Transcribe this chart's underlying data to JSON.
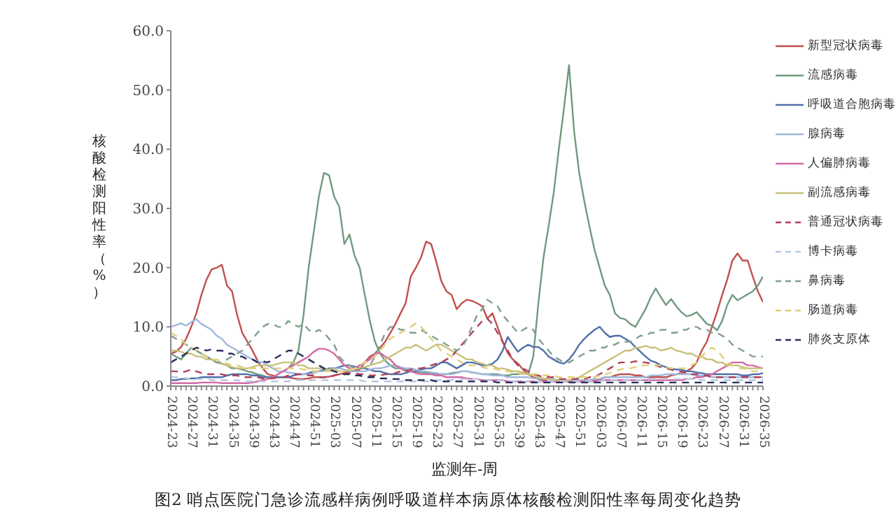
{
  "chart_data": {
    "type": "line",
    "title": "图2 哨点医院门急诊流感样病例呼吸道样本病原体核酸检测阳性率每周变化趋势",
    "xlabel": "监测年-周",
    "ylabel": "核酸检测阳性率（%）",
    "categories": [
      "2024-23",
      null,
      null,
      null,
      "2024-27",
      null,
      null,
      null,
      "2024-31",
      null,
      null,
      null,
      "2024-35",
      null,
      null,
      null,
      "2024-39",
      null,
      null,
      null,
      "2024-43",
      null,
      null,
      null,
      "2024-47",
      null,
      null,
      null,
      "2024-51",
      null,
      null,
      null,
      "2025-03",
      null,
      null,
      null,
      "2025-07",
      null,
      null,
      null,
      "2025-11",
      null,
      null,
      null,
      "2025-15",
      null,
      null,
      null,
      "2025-19",
      null,
      null,
      null,
      "2025-23",
      null,
      null,
      null,
      "2025-27",
      null,
      null,
      null,
      "2025-31",
      null,
      null,
      null,
      "2025-35",
      null,
      null,
      null,
      "2025-39",
      null,
      null,
      null,
      "2025-43",
      null,
      null,
      null,
      "2025-47",
      null,
      null,
      null,
      "2025-51",
      null,
      null,
      null,
      "2026-03",
      null,
      null,
      null,
      "2026-07",
      null,
      null,
      null,
      "2026-11",
      null,
      null,
      null,
      "2026-15",
      null,
      null,
      null,
      "2026-19",
      null,
      null,
      null,
      "2026-23",
      null,
      null,
      null,
      "2026-27",
      null,
      null,
      null,
      "2026-31",
      null,
      null,
      null,
      "2026-35"
    ],
    "ylim": [
      0,
      60
    ],
    "yticks": [
      {
        "value": 0,
        "label": "0.0"
      },
      {
        "value": 10,
        "label": "10.0"
      },
      {
        "value": 20,
        "label": "20.0"
      },
      {
        "value": 30,
        "label": "30.0"
      },
      {
        "value": 40,
        "label": "40.0"
      },
      {
        "value": 50,
        "label": "50.0"
      },
      {
        "value": 60,
        "label": "60.0"
      }
    ],
    "grid": false,
    "legend": "right",
    "marker": "none",
    "series": [
      {
        "name": "新型冠状病毒",
        "color": "#c0504d",
        "line_style": "solid",
        "values": [
          5.5,
          5.8,
          6.6,
          8,
          10,
          12.3,
          15.4,
          18,
          19.7,
          20,
          20.5,
          17,
          16,
          12,
          9,
          7.5,
          6,
          4.3,
          3,
          2,
          1.8,
          1.5,
          1.5,
          1.5,
          1.3,
          1.2,
          1.2,
          1.3,
          1.5,
          1.5,
          1.5,
          1.6,
          1.8,
          2,
          2.2,
          2.5,
          2.6,
          2.8,
          4,
          5,
          5.5,
          6.5,
          7.5,
          9,
          10.5,
          12.3,
          14,
          18.5,
          20,
          21.7,
          24.4,
          24,
          21,
          17.7,
          16,
          15.4,
          13,
          14,
          14.6,
          14.4,
          14,
          13.5,
          11.4,
          12.3,
          10,
          7.5,
          5.6,
          4.5,
          3.8,
          2.8,
          2,
          1.5,
          1.2,
          1,
          0.8,
          0.8,
          0.8,
          0.8,
          0.8,
          0.8,
          0.8,
          0.8,
          0.8,
          1,
          1.2,
          1.5,
          1.5,
          1.8,
          2,
          2,
          2,
          1.8,
          1.8,
          1.5,
          1.5,
          1.5,
          1.5,
          1.5,
          1.8,
          2,
          2.2,
          2.5,
          3,
          4,
          6,
          7.5,
          10,
          12.5,
          15.4,
          18,
          21.2,
          22.4,
          21.2,
          21.2,
          18.5,
          16,
          14.2
        ]
      },
      {
        "name": "流感病毒",
        "color": "#6f9a7e",
        "line_style": "solid",
        "values": [
          5.5,
          5,
          4.5,
          5.5,
          6.5,
          6,
          5.5,
          5,
          4.5,
          4,
          3.8,
          3.5,
          3,
          3,
          2.8,
          2.5,
          2.3,
          2,
          1.8,
          1.5,
          1.5,
          2,
          2.5,
          3,
          4,
          6,
          12,
          20,
          26,
          32,
          36,
          35.6,
          32,
          30.3,
          24,
          25.6,
          22,
          20,
          15.4,
          11,
          7.5,
          5.5,
          4.3,
          3.5,
          3,
          3,
          2.8,
          2.5,
          2.5,
          2.3,
          2.3,
          2.2,
          2,
          2,
          2,
          2.2,
          2.3,
          2.5,
          2.5,
          2.3,
          2.2,
          2,
          2,
          2,
          2,
          1.8,
          1.8,
          2,
          2,
          2.2,
          2,
          5,
          14,
          21.7,
          27,
          32.6,
          40,
          46.8,
          54.2,
          43,
          36,
          31.2,
          27,
          23,
          20,
          17,
          15.4,
          12.3,
          11.5,
          11.3,
          10.5,
          10,
          11.5,
          13,
          15,
          16.5,
          15,
          13.7,
          14.7,
          13.5,
          12.5,
          11.8,
          12,
          12.5,
          11.5,
          10.5,
          10.2,
          9.4,
          11,
          13.7,
          15.4,
          14.5,
          15,
          15.5,
          16,
          17,
          18.5
        ]
      },
      {
        "name": "呼吸道合胞病毒",
        "color": "#4f6fa8",
        "line_style": "solid",
        "values": [
          1,
          1,
          1.2,
          1.2,
          1.3,
          1.3,
          1.5,
          1.5,
          1.5,
          1.5,
          1.5,
          1.8,
          2,
          2,
          2,
          2,
          1.8,
          1.8,
          1.5,
          1.5,
          1.5,
          1.5,
          1.5,
          1.5,
          1.8,
          2,
          2,
          2.2,
          2.5,
          2.5,
          2.8,
          3,
          3,
          3.2,
          3.5,
          3.5,
          3.3,
          3,
          3,
          2.8,
          2.5,
          2.5,
          2.2,
          2,
          2,
          2,
          2.2,
          2.5,
          2.5,
          2.8,
          3,
          3,
          3.5,
          4,
          4,
          3.5,
          3,
          3.5,
          4,
          4,
          3.8,
          3.5,
          3.5,
          3.8,
          4.5,
          6,
          8.3,
          7,
          5.8,
          6.5,
          7,
          6.6,
          6.6,
          6,
          5,
          4.5,
          4,
          3.8,
          4.5,
          5.6,
          7,
          8,
          8.8,
          9.5,
          10,
          9,
          8.3,
          8.5,
          8.5,
          8,
          7.5,
          6.6,
          5.8,
          5,
          4.3,
          4,
          3.5,
          3.2,
          3,
          2.8,
          2.8,
          2.5,
          2.5,
          2.3,
          2.2,
          2,
          2,
          2,
          2,
          2,
          2,
          2,
          1.8,
          1.8,
          2,
          2,
          2.2
        ]
      },
      {
        "name": "腺病毒",
        "color": "#9fb6dc",
        "line_style": "solid",
        "values": [
          10,
          10.3,
          10.6,
          10.2,
          10.8,
          11.3,
          10.5,
          10,
          9.5,
          8.5,
          8,
          7,
          6.5,
          6,
          5.5,
          5,
          4.5,
          4.2,
          4,
          3.5,
          3,
          2.5,
          2.5,
          2.3,
          2.2,
          2,
          2,
          2,
          2.2,
          2.5,
          2.5,
          2.8,
          3,
          3,
          2.8,
          2.5,
          2.5,
          2.5,
          2.5,
          2.8,
          3,
          3,
          3.2,
          3.5,
          3.5,
          3.2,
          3,
          3,
          2.8,
          2.5,
          2.5,
          2.3,
          2.2,
          2,
          2,
          2,
          2.2,
          2.5,
          2.5,
          2.3,
          2.2,
          2,
          2,
          1.8,
          1.8,
          1.8,
          1.5,
          1.5,
          1.5,
          1.5,
          1.5,
          1.3,
          1.3,
          1.2,
          1.2,
          1.2,
          1,
          1,
          1,
          1,
          1,
          1,
          1,
          1.2,
          1.2,
          1.5,
          1.5,
          1.5,
          1.5,
          1.5,
          1.5,
          1.5,
          1.5,
          1.5,
          1.8,
          1.8,
          1.8,
          2,
          2,
          2,
          2,
          2,
          2,
          1.8,
          1.8,
          1.8,
          1.5,
          1.5,
          1.5,
          1.5,
          1.5,
          1.5,
          1.5,
          1.5,
          1.5,
          1.5,
          1.5
        ]
      },
      {
        "name": "人偏肺病毒",
        "color": "#d46ba5",
        "line_style": "solid",
        "values": [
          0.5,
          0.5,
          0.5,
          0.5,
          0.5,
          0.5,
          0.6,
          0.6,
          0.6,
          0.6,
          0.5,
          0.5,
          0.5,
          0.5,
          0.5,
          0.5,
          0.6,
          0.8,
          1,
          1.2,
          1.5,
          2,
          2.5,
          3,
          3.5,
          4,
          4.5,
          5,
          5.8,
          6.3,
          6.3,
          6,
          5.5,
          4.5,
          3.5,
          3,
          3,
          3.5,
          4,
          4.5,
          5.5,
          5.6,
          5,
          4.5,
          3.5,
          3,
          2.5,
          2.5,
          2.2,
          2,
          2,
          2,
          1.8,
          1.8,
          1.5,
          1.5,
          1.5,
          1.5,
          1.3,
          1.2,
          1.2,
          1,
          1,
          1,
          1,
          1,
          0.8,
          0.8,
          0.8,
          0.8,
          0.8,
          0.8,
          0.8,
          0.8,
          0.8,
          0.8,
          0.8,
          0.8,
          0.8,
          0.8,
          0.8,
          0.8,
          0.8,
          0.8,
          1,
          1,
          1,
          1,
          1,
          1,
          1,
          1,
          1,
          1,
          1,
          1,
          1,
          1,
          1,
          1,
          1,
          1.2,
          1.2,
          1.5,
          1.5,
          1.8,
          2,
          2.5,
          3,
          3.5,
          4,
          4,
          4,
          3.5,
          3.5,
          3.2,
          3
        ]
      },
      {
        "name": "副流感病毒",
        "color": "#c8c07a",
        "line_style": "solid",
        "values": [
          6,
          6,
          5.8,
          5.5,
          5.5,
          5,
          5,
          4.5,
          4.5,
          4,
          3.8,
          3.5,
          3.2,
          3,
          3,
          3,
          3.2,
          3.5,
          3.5,
          3.5,
          3.5,
          3.8,
          4,
          4,
          4,
          3.5,
          3.5,
          3,
          3,
          3,
          3,
          2.8,
          2.8,
          2.5,
          2.5,
          2.8,
          3,
          3,
          3.2,
          3.5,
          3.8,
          4,
          4.5,
          5,
          5.5,
          6,
          6.5,
          6.5,
          7,
          6.5,
          6,
          6.5,
          7,
          7,
          6.5,
          6,
          5.5,
          5,
          4.5,
          4.5,
          4,
          3.8,
          3.5,
          3.5,
          3,
          3,
          2.8,
          2.5,
          2.5,
          2.3,
          2,
          1.8,
          1.5,
          1.3,
          1.2,
          1,
          1,
          1,
          1,
          1.2,
          1.5,
          2,
          2.5,
          3,
          3.5,
          4,
          4.5,
          5,
          5.5,
          6,
          6,
          6.5,
          6.5,
          6.8,
          6.5,
          6.5,
          6,
          6.2,
          6.5,
          6,
          5.8,
          5.5,
          5.5,
          5,
          5,
          4.5,
          4.5,
          4,
          4,
          3.5,
          3.5,
          3.5,
          3.2,
          3,
          3,
          3,
          3
        ]
      },
      {
        "name": "普通冠状病毒",
        "color": "#b0405a",
        "line_style": "dashed",
        "values": [
          2.5,
          2.5,
          2.3,
          2.5,
          2.8,
          2.5,
          2.2,
          2,
          2,
          2,
          2,
          1.8,
          1.8,
          1.8,
          1.5,
          1.5,
          1.5,
          1.5,
          1.3,
          1.3,
          1.3,
          1.5,
          1.5,
          1.8,
          2,
          2,
          2,
          1.8,
          1.8,
          1.5,
          1.5,
          1.5,
          1.8,
          2,
          2,
          2.2,
          2.2,
          2,
          2,
          1.8,
          1.8,
          1.8,
          2,
          2,
          2.2,
          2.5,
          2.5,
          2.8,
          3,
          3,
          3.2,
          3.5,
          3.8,
          4,
          4.5,
          5,
          6,
          7,
          8,
          9,
          10,
          11,
          11.4,
          10.5,
          9,
          7.5,
          6,
          4.5,
          3.5,
          3,
          2.5,
          2,
          1.8,
          1.5,
          1.5,
          1.5,
          1.2,
          1.2,
          1.2,
          1.2,
          1.2,
          1.2,
          1.5,
          1.5,
          2,
          2.5,
          3,
          3.5,
          4,
          4,
          4,
          4.2,
          4,
          4,
          3.8,
          3.5,
          3.2,
          3,
          2.8,
          2.5,
          2.5,
          2.2,
          2,
          2,
          1.8,
          1.8,
          1.5,
          1.5,
          1.5,
          1.5,
          1.5,
          1.5,
          1.5,
          1.5,
          1.5,
          1.5,
          1.5
        ]
      },
      {
        "name": "博卡病毒",
        "color": "#b8c8e0",
        "line_style": "dashed",
        "values": [
          1.5,
          1.5,
          1.5,
          1.3,
          1.3,
          1.2,
          1.2,
          1.2,
          1,
          1,
          1,
          1,
          1,
          1,
          0.8,
          0.8,
          0.8,
          0.8,
          0.8,
          0.8,
          0.8,
          0.8,
          0.8,
          0.8,
          1,
          1,
          1,
          1,
          1,
          1,
          1,
          1,
          1,
          1,
          1,
          1,
          1,
          1,
          0.8,
          0.8,
          0.8,
          0.8,
          0.8,
          0.8,
          0.8,
          0.8,
          0.8,
          0.8,
          0.8,
          0.8,
          0.8,
          0.8,
          1,
          1,
          1,
          1,
          1.2,
          1.2,
          1.2,
          1.2,
          1.2,
          1.2,
          1,
          1,
          1,
          1,
          0.8,
          0.8,
          0.8,
          0.8,
          0.8,
          0.8,
          0.8,
          0.8,
          0.8,
          0.8,
          0.8,
          0.8,
          0.8,
          0.8,
          0.8,
          0.8,
          0.8,
          0.8,
          0.8,
          1,
          1,
          1,
          1,
          1,
          1,
          1,
          1,
          1,
          1.2,
          1.2,
          1.2,
          1.2,
          1.2,
          1.2,
          1.2,
          1.2,
          1.2,
          1.2,
          1,
          1,
          1,
          1,
          1,
          1,
          1,
          1,
          1,
          1,
          1,
          1,
          1
        ]
      },
      {
        "name": "鼻病毒",
        "color": "#7f9f8f",
        "line_style": "dashed",
        "values": [
          8.5,
          8,
          7.5,
          7,
          6.5,
          6,
          5.5,
          5,
          4.5,
          4,
          4,
          4.5,
          5,
          5.5,
          6,
          7,
          8,
          9,
          10,
          10.5,
          10.5,
          10,
          10,
          11,
          10.5,
          10,
          10.5,
          9.5,
          9,
          9.5,
          9,
          8,
          7,
          5,
          4,
          3.5,
          3,
          3,
          3,
          3.5,
          5,
          7,
          9,
          10,
          10,
          9.5,
          9.5,
          9,
          9,
          9.5,
          9,
          8.5,
          8,
          7.5,
          7,
          6.5,
          6,
          6.5,
          8,
          10,
          12,
          13,
          14.6,
          14,
          13.5,
          12,
          11,
          10,
          9,
          9.5,
          10,
          9.5,
          8,
          7,
          6,
          5,
          4.5,
          4,
          4,
          4.5,
          5,
          5.5,
          6,
          6,
          6.5,
          6.5,
          7,
          7,
          7.5,
          7.5,
          7.5,
          8,
          8.5,
          8.5,
          9,
          9,
          9.5,
          9.5,
          9,
          9,
          9.5,
          9.5,
          10,
          10,
          9.5,
          9.5,
          9,
          9,
          8.5,
          8,
          7,
          6.5,
          6,
          5.5,
          5,
          5,
          5
        ]
      },
      {
        "name": "肠道病毒",
        "color": "#e0cf7a",
        "line_style": "dashed",
        "values": [
          9,
          8.5,
          8,
          7,
          6.5,
          6,
          5.5,
          5,
          4.5,
          4.5,
          4,
          3.8,
          3.5,
          3.5,
          3.2,
          3,
          3,
          3,
          3,
          3,
          3,
          3,
          3,
          3,
          3,
          3,
          2.8,
          2.8,
          2.5,
          2.5,
          2.5,
          2.5,
          2.5,
          2.5,
          2.5,
          2.8,
          3,
          3.5,
          4,
          4.5,
          5,
          6,
          7,
          8,
          8.5,
          9,
          9.5,
          10,
          10.6,
          10,
          9,
          8,
          7,
          6,
          5.5,
          5,
          4.5,
          4,
          3.5,
          3.5,
          3.5,
          3.2,
          3,
          3,
          2.8,
          2.5,
          2.5,
          2.3,
          2.2,
          2,
          2,
          2,
          2,
          1.8,
          1.8,
          1.8,
          1.5,
          1.5,
          1.5,
          1.5,
          1.5,
          1.5,
          1.5,
          1.5,
          1.8,
          2,
          2.2,
          2.5,
          2.8,
          3,
          3,
          3.2,
          3.5,
          3.5,
          3.5,
          3.5,
          3.5,
          3.2,
          3,
          3,
          3,
          3,
          3.5,
          4,
          5,
          6,
          6.5,
          6,
          5,
          4,
          3.5,
          3,
          3,
          2.8,
          2.5,
          2.5,
          2.5
        ]
      },
      {
        "name": "肺炎支原体",
        "color": "#2a2f5e",
        "line_style": "dashed",
        "values": [
          4,
          4.5,
          5,
          5.5,
          6,
          6.5,
          6.2,
          6,
          6.2,
          6,
          6,
          5.5,
          5.5,
          5,
          5,
          4.5,
          4.5,
          4,
          4.2,
          4,
          4.5,
          5,
          5.5,
          6,
          6,
          5.5,
          5,
          4.5,
          4,
          3.5,
          3,
          2.8,
          2.5,
          2.2,
          2,
          2,
          1.8,
          1.8,
          1.5,
          1.5,
          1.5,
          1.3,
          1.3,
          1.2,
          1.2,
          1.2,
          1,
          1,
          1,
          1,
          1,
          1,
          0.8,
          0.8,
          0.8,
          0.8,
          0.8,
          0.8,
          0.8,
          0.8,
          0.8,
          0.8,
          0.8,
          0.8,
          0.6,
          0.6,
          0.6,
          0.6,
          0.6,
          0.6,
          0.6,
          0.6,
          0.6,
          0.6,
          0.6,
          0.6,
          0.6,
          0.6,
          0.6,
          0.6,
          0.6,
          0.6,
          0.6,
          0.6,
          0.6,
          0.6,
          0.6,
          0.6,
          0.6,
          0.6,
          0.6,
          0.6,
          0.6,
          0.6,
          0.6,
          0.6,
          0.6,
          0.6,
          0.6,
          0.6,
          0.6,
          0.6,
          0.6,
          0.6,
          0.6,
          0.6,
          0.6,
          0.6,
          0.6,
          0.6,
          0.6,
          0.6,
          0.6,
          0.6,
          0.6,
          0.6,
          0.6
        ]
      }
    ]
  }
}
